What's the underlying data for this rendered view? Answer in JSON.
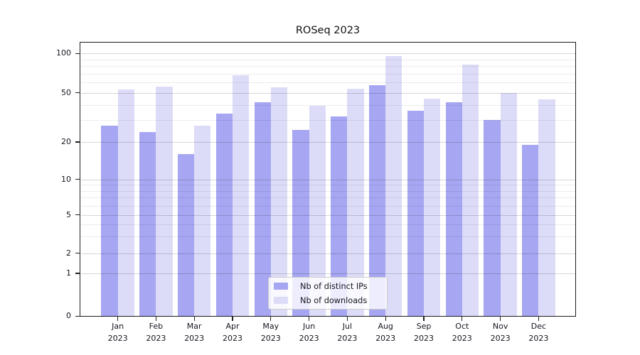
{
  "title": "ROSeq 2023",
  "chart_data": {
    "type": "bar",
    "title": "ROSeq 2023",
    "categories": [
      "Jan 2023",
      "Feb 2023",
      "Mar 2023",
      "Apr 2023",
      "May 2023",
      "Jun 2023",
      "Jul 2023",
      "Aug 2023",
      "Sep 2023",
      "Oct 2023",
      "Nov 2023",
      "Dec 2023"
    ],
    "series": [
      {
        "name": "Nb of distinct IPs",
        "color": "#a6a6f2",
        "values": [
          27,
          24,
          16,
          34,
          42,
          25,
          32,
          57,
          36,
          42,
          30,
          19
        ]
      },
      {
        "name": "Nb of downloads",
        "color": "#dcdcf8",
        "values": [
          53,
          56,
          27,
          68,
          55,
          39,
          54,
          96,
          45,
          82,
          50,
          44
        ]
      }
    ],
    "xlabel": "",
    "ylabel": "",
    "yscale": "symlog",
    "yticks": [
      0,
      1,
      2,
      5,
      10,
      20,
      50,
      100
    ],
    "ytick_minor": [
      3,
      4,
      6,
      7,
      8,
      9,
      30,
      40,
      60,
      70,
      80,
      90
    ],
    "ylim": [
      0,
      120
    ],
    "grid": true,
    "legend_position": "lower center"
  },
  "colors": {
    "background": "#ffffff",
    "spine": "#1a1a1a",
    "grid_major": "#cccccc",
    "grid_minor": "#e9e9e9",
    "bar_distinct_ips": "#a6a6f2",
    "bar_downloads": "#dcdcf8"
  }
}
